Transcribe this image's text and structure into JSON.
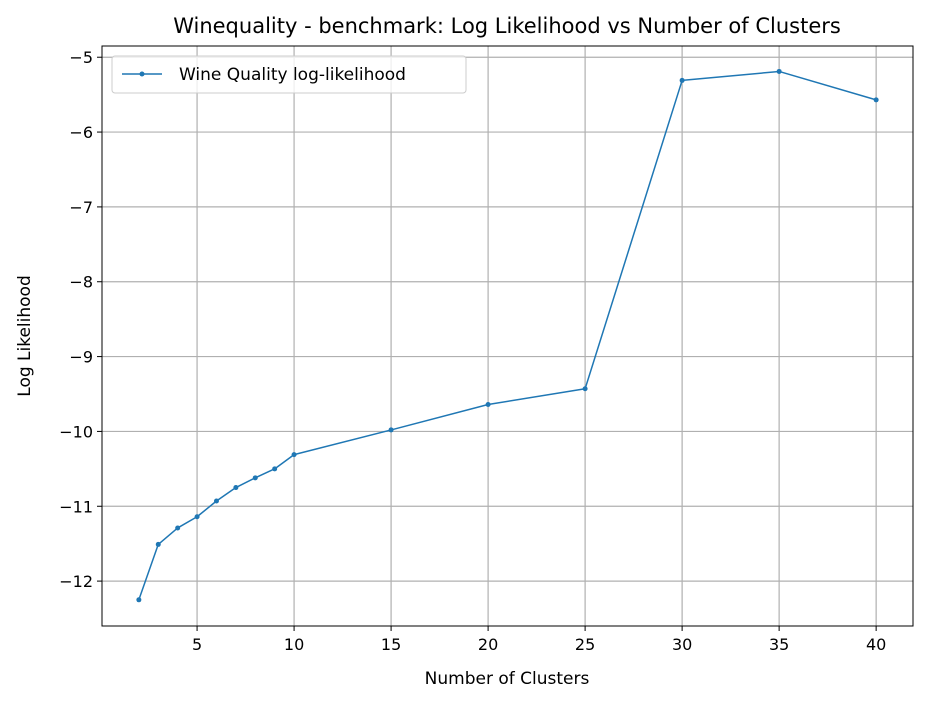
{
  "chart_data": {
    "type": "line",
    "title": "Winequality - benchmark: Log Likelihood vs Number of Clusters",
    "xlabel": "Number of Clusters",
    "ylabel": "Log Likelihood",
    "xlim": [
      0.1,
      41.9
    ],
    "ylim": [
      -12.6,
      -4.85
    ],
    "xticks": [
      5,
      10,
      15,
      20,
      25,
      30,
      35,
      40
    ],
    "yticks": [
      -12,
      -11,
      -10,
      -9,
      -8,
      -7,
      -6,
      -5
    ],
    "ytick_labels": [
      "−12",
      "−11",
      "−10",
      "−9",
      "−8",
      "−7",
      "−6",
      "−5"
    ],
    "grid": true,
    "legend_position": "top-left",
    "series": [
      {
        "name": "Wine Quality log-likelihood",
        "color": "#1f77b4",
        "x": [
          2,
          3,
          4,
          5,
          6,
          7,
          8,
          9,
          10,
          15,
          20,
          25,
          30,
          35,
          40
        ],
        "y": [
          -12.25,
          -11.51,
          -11.29,
          -11.14,
          -10.93,
          -10.75,
          -10.62,
          -10.5,
          -10.31,
          -9.98,
          -9.64,
          -9.43,
          -5.31,
          -5.19,
          -5.57
        ]
      }
    ]
  }
}
